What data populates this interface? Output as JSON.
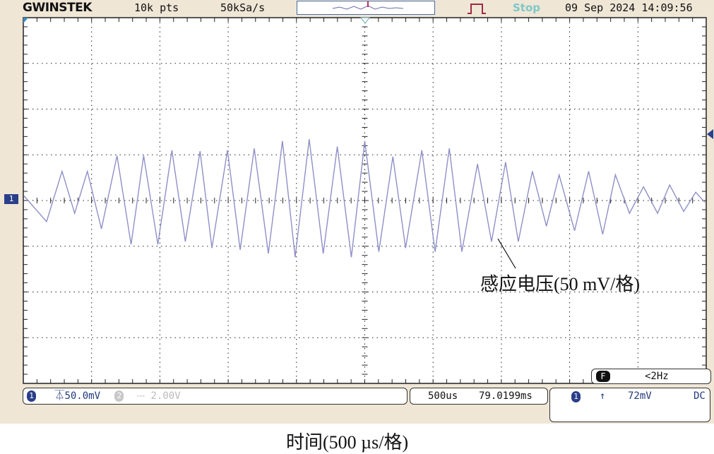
{
  "header": {
    "brand": "GWINSTEK",
    "points": "10k pts",
    "sample_rate": "50kSa/s",
    "run_state": "Stop",
    "datetime": "09 Sep 2024 14:09:56"
  },
  "status": {
    "ch1_num": "1",
    "ch1_scale": "50.0mV",
    "ch2_num": "2",
    "ch2_scale": "2.00V",
    "timebase": "500us",
    "position": "79.0199ms",
    "trig_ch": "1",
    "trig_level": "72mV",
    "coupling": "DC",
    "freq_badge": "F",
    "freq": "<2Hz"
  },
  "markers": {
    "ch1": "1"
  },
  "colors": {
    "trace": "#8f8fc8",
    "grid": "#222222",
    "accent": "#2a3f8a",
    "background": "#efe6d6"
  },
  "annotations": {
    "voltage_label": "感应电压(50 mV/格)",
    "time_label": "时间(500 µs/格)"
  },
  "chart_data": {
    "type": "line",
    "xlabel": "时间(500 µs/格)",
    "ylabel": "感应电压(50 mV/格)",
    "xlim": [
      -2500,
      2500
    ],
    "ylim": [
      -200,
      200
    ],
    "x_unit": "µs",
    "y_unit": "mV",
    "grid": true,
    "series": [
      {
        "t": [
          -2495,
          -2330,
          -2216,
          -2124,
          -2031,
          -1928,
          -1814,
          -1711,
          -1619,
          -1515,
          -1412,
          -1314,
          -1206,
          -1119,
          -1005,
          -912,
          -809,
          -706,
          -603,
          -510,
          -407,
          -304,
          -201,
          -98,
          0,
          103,
          206,
          299,
          418,
          515,
          619,
          711,
          825,
          928,
          1031,
          1124,
          1227,
          1330,
          1423,
          1536,
          1639,
          1742,
          1835,
          1938,
          2041,
          2144,
          2232,
          2335,
          2423,
          2490
        ],
        "v": [
          5,
          -23,
          32,
          -14,
          32,
          -31,
          49,
          -48,
          49,
          -48,
          55,
          -45,
          54,
          -52,
          55,
          -54,
          57,
          -58,
          65,
          -62,
          67,
          -58,
          59,
          -62,
          65,
          -56,
          48,
          -52,
          55,
          -56,
          57,
          -56,
          40,
          -45,
          42,
          -45,
          32,
          -28,
          28,
          -33,
          32,
          -37,
          28,
          -14,
          15,
          -14,
          17,
          -12,
          9,
          -2
        ]
      }
    ]
  }
}
